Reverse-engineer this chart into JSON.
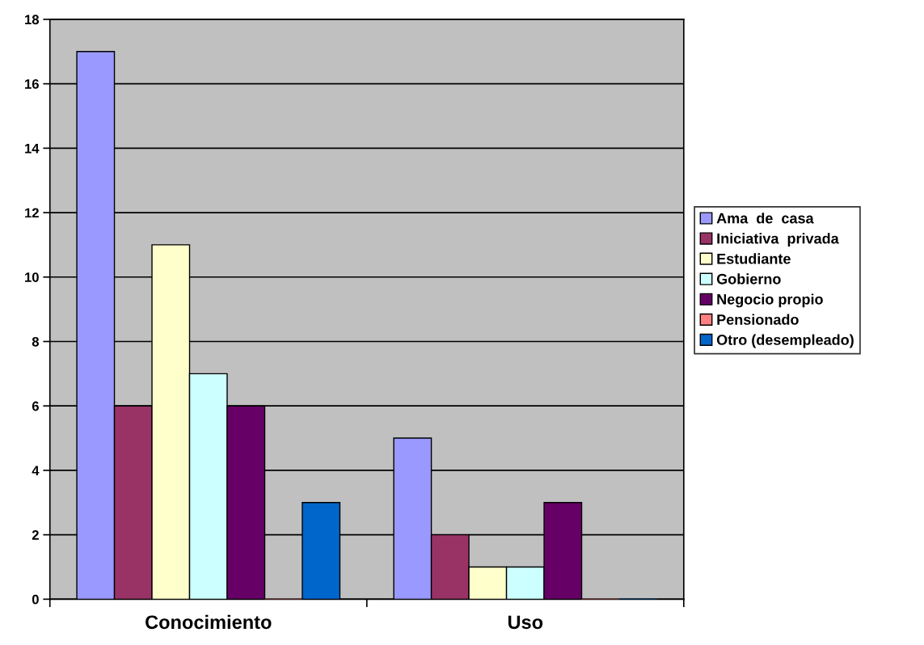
{
  "chart_data": {
    "type": "bar",
    "categories": [
      "Conocimiento",
      "Uso"
    ],
    "series": [
      {
        "name": "Ama  de  casa",
        "color": "#9999ff",
        "values": [
          17,
          5
        ]
      },
      {
        "name": "Iniciativa  privada",
        "color": "#993366",
        "values": [
          6,
          2
        ]
      },
      {
        "name": "Estudiante",
        "color": "#ffffcc",
        "values": [
          11,
          1
        ]
      },
      {
        "name": "Gobierno",
        "color": "#ccffff",
        "values": [
          7,
          1
        ]
      },
      {
        "name": "Negocio propio",
        "color": "#660066",
        "values": [
          6,
          3
        ]
      },
      {
        "name": "Pensionado",
        "color": "#ff8080",
        "values": [
          0,
          0
        ]
      },
      {
        "name": "Otro (desempleado)",
        "color": "#0066cc",
        "values": [
          3,
          0
        ]
      }
    ],
    "ylim": [
      0,
      18
    ],
    "yticks": [
      0,
      2,
      4,
      6,
      8,
      10,
      12,
      14,
      16,
      18
    ],
    "grid": "y",
    "legend": "right"
  }
}
